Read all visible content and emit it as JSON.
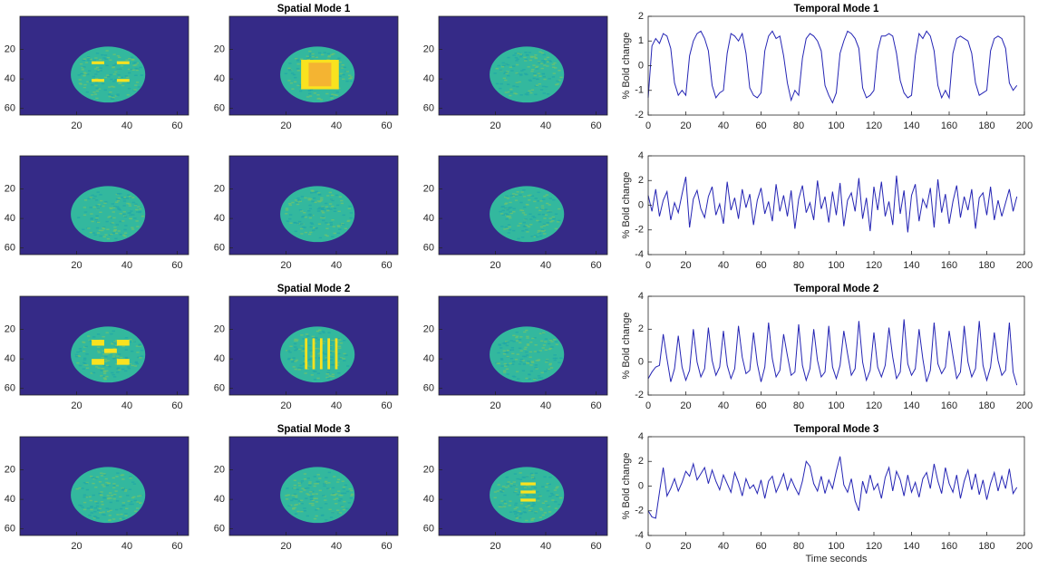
{
  "chart_data": [
    {
      "type": "image",
      "xlim": [
        -2.5,
        64.5
      ],
      "ylim": [
        64.5,
        -2.5
      ],
      "xticks": [
        20,
        40,
        60
      ],
      "yticks": [
        20,
        40,
        60
      ]
    },
    {
      "type": "image",
      "title": "Spatial Mode 1",
      "xlim": [
        -2.5,
        64.5
      ],
      "ylim": [
        64.5,
        -2.5
      ],
      "xticks": [
        20,
        40,
        60
      ],
      "yticks": [
        20,
        40,
        60
      ]
    },
    {
      "type": "image",
      "xlim": [
        -2.5,
        64.5
      ],
      "ylim": [
        64.5,
        -2.5
      ],
      "xticks": [
        20,
        40,
        60
      ],
      "yticks": [
        20,
        40,
        60
      ]
    },
    {
      "type": "line",
      "title": "Temporal Mode 1",
      "ylabel": "% Bold change",
      "color": "#2424b4",
      "xlim": [
        0,
        200
      ],
      "ylim": [
        -2,
        2
      ],
      "xticks": [
        0,
        20,
        40,
        60,
        80,
        100,
        120,
        140,
        160,
        180,
        200
      ],
      "yticks": [
        -2,
        -1,
        0,
        1,
        2
      ],
      "x": [
        0,
        2,
        4,
        6,
        8,
        10,
        12,
        14,
        16,
        18,
        20,
        22,
        24,
        26,
        28,
        30,
        32,
        34,
        36,
        38,
        40,
        42,
        44,
        46,
        48,
        50,
        52,
        54,
        56,
        58,
        60,
        62,
        64,
        66,
        68,
        70,
        72,
        74,
        76,
        78,
        80,
        82,
        84,
        86,
        88,
        90,
        92,
        94,
        96,
        98,
        100,
        102,
        104,
        106,
        108,
        110,
        112,
        114,
        116,
        118,
        120,
        122,
        124,
        126,
        128,
        130,
        132,
        134,
        136,
        138,
        140,
        142,
        144,
        146,
        148,
        150,
        152,
        154,
        156,
        158,
        160,
        162,
        164,
        166,
        168,
        170,
        172,
        174,
        176,
        178,
        180,
        182,
        184,
        186,
        188,
        190,
        192,
        194,
        196
      ],
      "values": [
        -1.3,
        0.8,
        1.1,
        0.9,
        1.3,
        1.2,
        0.7,
        -0.7,
        -1.2,
        -1.0,
        -1.2,
        0.4,
        1.0,
        1.3,
        1.4,
        1.1,
        0.6,
        -0.8,
        -1.3,
        -1.1,
        -1.0,
        0.5,
        1.3,
        1.2,
        1.0,
        1.3,
        0.5,
        -0.9,
        -1.2,
        -1.3,
        -1.1,
        0.6,
        1.2,
        1.4,
        1.1,
        1.2,
        0.4,
        -0.7,
        -1.4,
        -1.0,
        -1.2,
        0.3,
        1.1,
        1.3,
        1.2,
        1.0,
        0.6,
        -0.8,
        -1.2,
        -1.5,
        -1.1,
        0.5,
        1.0,
        1.4,
        1.3,
        1.1,
        0.7,
        -0.9,
        -1.3,
        -1.2,
        -1.0,
        0.6,
        1.2,
        1.2,
        1.3,
        1.2,
        0.5,
        -0.6,
        -1.1,
        -1.3,
        -1.2,
        0.4,
        1.3,
        1.1,
        1.4,
        1.2,
        0.6,
        -0.8,
        -1.3,
        -1.0,
        -1.3,
        0.5,
        1.1,
        1.2,
        1.1,
        1.0,
        0.5,
        -0.7,
        -1.2,
        -1.1,
        -1.0,
        0.6,
        1.1,
        1.2,
        1.1,
        0.7,
        -0.7,
        -1.0,
        -0.8
      ]
    },
    {
      "type": "image",
      "xlim": [
        -2.5,
        64.5
      ],
      "ylim": [
        64.5,
        -2.5
      ],
      "xticks": [
        20,
        40,
        60
      ],
      "yticks": [
        20,
        40,
        60
      ]
    },
    {
      "type": "image",
      "xlim": [
        -2.5,
        64.5
      ],
      "ylim": [
        64.5,
        -2.5
      ],
      "xticks": [
        20,
        40,
        60
      ],
      "yticks": [
        20,
        40,
        60
      ]
    },
    {
      "type": "image",
      "xlim": [
        -2.5,
        64.5
      ],
      "ylim": [
        64.5,
        -2.5
      ],
      "xticks": [
        20,
        40,
        60
      ],
      "yticks": [
        20,
        40,
        60
      ]
    },
    {
      "type": "line",
      "ylabel": "% Bold change",
      "color": "#2424b4",
      "xlim": [
        0,
        200
      ],
      "ylim": [
        -4,
        4
      ],
      "xticks": [
        0,
        20,
        40,
        60,
        80,
        100,
        120,
        140,
        160,
        180,
        200
      ],
      "yticks": [
        -4,
        -2,
        0,
        2,
        4
      ],
      "x": [
        0,
        2,
        4,
        6,
        8,
        10,
        12,
        14,
        16,
        18,
        20,
        22,
        24,
        26,
        28,
        30,
        32,
        34,
        36,
        38,
        40,
        42,
        44,
        46,
        48,
        50,
        52,
        54,
        56,
        58,
        60,
        62,
        64,
        66,
        68,
        70,
        72,
        74,
        76,
        78,
        80,
        82,
        84,
        86,
        88,
        90,
        92,
        94,
        96,
        98,
        100,
        102,
        104,
        106,
        108,
        110,
        112,
        114,
        116,
        118,
        120,
        122,
        124,
        126,
        128,
        130,
        132,
        134,
        136,
        138,
        140,
        142,
        144,
        146,
        148,
        150,
        152,
        154,
        156,
        158,
        160,
        162,
        164,
        166,
        168,
        170,
        172,
        174,
        176,
        178,
        180,
        182,
        184,
        186,
        188,
        190,
        192,
        194,
        196
      ],
      "values": [
        0.8,
        -0.5,
        1.3,
        -0.9,
        0.4,
        1.1,
        -1.2,
        0.2,
        -0.6,
        0.9,
        2.3,
        -1.8,
        0.5,
        1.2,
        -0.3,
        -1.0,
        0.7,
        1.5,
        -0.8,
        0.1,
        -1.5,
        1.9,
        -0.4,
        0.6,
        -1.1,
        1.3,
        -0.2,
        0.9,
        -1.6,
        0.4,
        1.4,
        -0.7,
        0.3,
        -1.3,
        1.7,
        -0.5,
        0.8,
        -0.9,
        1.2,
        -1.9,
        0.5,
        1.6,
        -0.6,
        0.2,
        -1.2,
        2.0,
        -0.3,
        0.7,
        -1.4,
        1.1,
        -0.8,
        1.8,
        -1.7,
        0.4,
        1.0,
        -0.5,
        2.2,
        -1.1,
        0.6,
        -2.1,
        1.5,
        -0.4,
        1.9,
        -0.9,
        0.3,
        -1.6,
        2.4,
        -0.7,
        1.2,
        -2.2,
        0.8,
        1.7,
        -1.3,
        0.5,
        -0.2,
        1.4,
        -1.8,
        2.1,
        -0.6,
        0.9,
        -1.5,
        0.3,
        1.6,
        -1.0,
        0.7,
        -0.4,
        1.3,
        -1.9,
        0.6,
        1.0,
        -0.8,
        1.5,
        -1.2,
        0.4,
        -0.9,
        0.2,
        1.3,
        -0.5,
        0.7
      ]
    },
    {
      "type": "image",
      "xlim": [
        -2.5,
        64.5
      ],
      "ylim": [
        64.5,
        -2.5
      ],
      "xticks": [
        20,
        40,
        60
      ],
      "yticks": [
        20,
        40,
        60
      ]
    },
    {
      "type": "image",
      "title": "Spatial Mode 2",
      "xlim": [
        -2.5,
        64.5
      ],
      "ylim": [
        64.5,
        -2.5
      ],
      "xticks": [
        20,
        40,
        60
      ],
      "yticks": [
        20,
        40,
        60
      ]
    },
    {
      "type": "image",
      "xlim": [
        -2.5,
        64.5
      ],
      "ylim": [
        64.5,
        -2.5
      ],
      "xticks": [
        20,
        40,
        60
      ],
      "yticks": [
        20,
        40,
        60
      ]
    },
    {
      "type": "line",
      "title": "Temporal Mode 2",
      "ylabel": "% Bold change",
      "color": "#2424b4",
      "xlim": [
        0,
        200
      ],
      "ylim": [
        -2,
        4
      ],
      "xticks": [
        0,
        20,
        40,
        60,
        80,
        100,
        120,
        140,
        160,
        180,
        200
      ],
      "yticks": [
        -2,
        0,
        2,
        4
      ],
      "x": [
        0,
        2,
        4,
        6,
        8,
        10,
        12,
        14,
        16,
        18,
        20,
        22,
        24,
        26,
        28,
        30,
        32,
        34,
        36,
        38,
        40,
        42,
        44,
        46,
        48,
        50,
        52,
        54,
        56,
        58,
        60,
        62,
        64,
        66,
        68,
        70,
        72,
        74,
        76,
        78,
        80,
        82,
        84,
        86,
        88,
        90,
        92,
        94,
        96,
        98,
        100,
        102,
        104,
        106,
        108,
        110,
        112,
        114,
        116,
        118,
        120,
        122,
        124,
        126,
        128,
        130,
        132,
        134,
        136,
        138,
        140,
        142,
        144,
        146,
        148,
        150,
        152,
        154,
        156,
        158,
        160,
        162,
        164,
        166,
        168,
        170,
        172,
        174,
        176,
        178,
        180,
        182,
        184,
        186,
        188,
        190,
        192,
        194,
        196
      ],
      "values": [
        -1.0,
        -0.6,
        -0.3,
        -0.2,
        1.7,
        0.2,
        -1.2,
        -0.4,
        1.6,
        -0.3,
        -1.1,
        -0.5,
        2.0,
        0.0,
        -0.9,
        -0.4,
        2.1,
        0.1,
        -0.8,
        -0.3,
        1.9,
        -0.2,
        -1.0,
        -0.4,
        2.2,
        0.3,
        -0.7,
        -0.5,
        1.8,
        -0.1,
        -1.2,
        -0.3,
        2.4,
        0.2,
        -0.9,
        -0.5,
        1.7,
        0.4,
        -0.8,
        -0.6,
        2.3,
        -0.2,
        -1.1,
        -0.4,
        2.0,
        0.1,
        -0.9,
        -0.6,
        2.2,
        -0.3,
        -1.0,
        -0.2,
        1.9,
        0.5,
        -0.8,
        -0.4,
        2.5,
        0.0,
        -1.1,
        -0.5,
        1.8,
        -0.3,
        -0.9,
        -0.2,
        2.1,
        0.3,
        -1.0,
        -0.6,
        2.6,
        -0.1,
        -0.8,
        -0.4,
        2.0,
        0.2,
        -1.2,
        -0.5,
        2.4,
        -0.1,
        -0.7,
        -0.3,
        1.9,
        0.4,
        -1.0,
        -0.6,
        2.2,
        0.0,
        -0.9,
        -0.4,
        2.5,
        -0.2,
        -1.1,
        -0.3,
        1.8,
        0.1,
        -0.8,
        -0.5,
        2.4,
        -0.6,
        -1.4
      ]
    },
    {
      "type": "image",
      "xlim": [
        -2.5,
        64.5
      ],
      "ylim": [
        64.5,
        -2.5
      ],
      "xticks": [
        20,
        40,
        60
      ],
      "yticks": [
        20,
        40,
        60
      ]
    },
    {
      "type": "image",
      "title": "Spatial Mode 3",
      "xlim": [
        -2.5,
        64.5
      ],
      "ylim": [
        64.5,
        -2.5
      ],
      "xticks": [
        20,
        40,
        60
      ],
      "yticks": [
        20,
        40,
        60
      ]
    },
    {
      "type": "image",
      "xlim": [
        -2.5,
        64.5
      ],
      "ylim": [
        64.5,
        -2.5
      ],
      "xticks": [
        20,
        40,
        60
      ],
      "yticks": [
        20,
        40,
        60
      ]
    },
    {
      "type": "line",
      "title": "Temporal Mode 3",
      "ylabel": "% Bold change",
      "xlabel": "Time seconds",
      "color": "#2424b4",
      "xlim": [
        0,
        200
      ],
      "ylim": [
        -4,
        4
      ],
      "xticks": [
        0,
        20,
        40,
        60,
        80,
        100,
        120,
        140,
        160,
        180,
        200
      ],
      "yticks": [
        -4,
        -2,
        0,
        2,
        4
      ],
      "x": [
        0,
        2,
        4,
        6,
        8,
        10,
        12,
        14,
        16,
        18,
        20,
        22,
        24,
        26,
        28,
        30,
        32,
        34,
        36,
        38,
        40,
        42,
        44,
        46,
        48,
        50,
        52,
        54,
        56,
        58,
        60,
        62,
        64,
        66,
        68,
        70,
        72,
        74,
        76,
        78,
        80,
        82,
        84,
        86,
        88,
        90,
        92,
        94,
        96,
        98,
        100,
        102,
        104,
        106,
        108,
        110,
        112,
        114,
        116,
        118,
        120,
        122,
        124,
        126,
        128,
        130,
        132,
        134,
        136,
        138,
        140,
        142,
        144,
        146,
        148,
        150,
        152,
        154,
        156,
        158,
        160,
        162,
        164,
        166,
        168,
        170,
        172,
        174,
        176,
        178,
        180,
        182,
        184,
        186,
        188,
        190,
        192,
        194,
        196
      ],
      "values": [
        -2.0,
        -2.5,
        -2.6,
        -0.5,
        1.5,
        -0.8,
        -0.2,
        0.6,
        -0.4,
        0.3,
        1.2,
        0.8,
        1.8,
        0.5,
        1.0,
        1.5,
        0.2,
        1.3,
        0.4,
        -0.3,
        0.9,
        0.2,
        -0.5,
        1.1,
        0.3,
        -0.8,
        0.6,
        -0.2,
        0.1,
        -0.6,
        0.5,
        -1.0,
        0.4,
        0.8,
        -0.5,
        0.2,
        1.0,
        -0.3,
        0.6,
        -0.1,
        -0.7,
        0.4,
        2.0,
        1.6,
        0.2,
        -0.4,
        0.8,
        -0.6,
        0.5,
        -0.2,
        1.2,
        2.4,
        0.1,
        -0.5,
        0.6,
        -1.2,
        -2.0,
        0.4,
        -0.6,
        0.9,
        -0.3,
        0.2,
        -1.0,
        0.7,
        1.5,
        -0.4,
        1.2,
        0.5,
        -0.8,
        0.9,
        -0.5,
        0.3,
        -0.9,
        0.6,
        1.1,
        -0.2,
        1.8,
        0.4,
        -0.6,
        1.5,
        0.2,
        -0.5,
        0.9,
        -1.0,
        0.4,
        1.3,
        -0.3,
        1.0,
        -0.7,
        0.5,
        -1.1,
        0.2,
        1.1,
        -0.4,
        0.8,
        -0.2,
        1.4,
        -0.6,
        -0.1
      ]
    }
  ]
}
